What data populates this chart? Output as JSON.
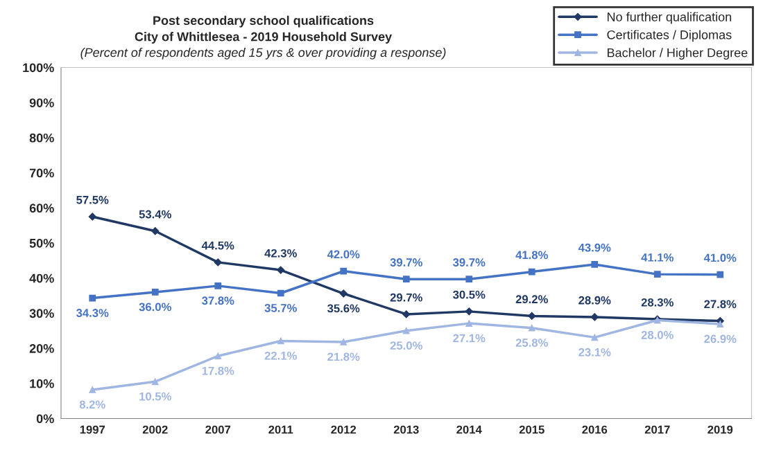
{
  "chart_data": {
    "type": "line",
    "title": "Post secondary school qualifications\nCity of Whittlesea - 2019 Household Survey",
    "subtitle": "(Percent of respondents aged 15 yrs & over providing a response)",
    "categories": [
      "1997",
      "2002",
      "2007",
      "2011",
      "2012",
      "2013",
      "2014",
      "2015",
      "2016",
      "2017",
      "2019"
    ],
    "series": [
      {
        "name": "No further qualification",
        "color": "#203864",
        "marker": "diamond",
        "values": [
          57.5,
          53.4,
          44.5,
          42.3,
          35.6,
          29.7,
          30.5,
          29.2,
          28.9,
          28.3,
          27.8
        ],
        "value_labels": [
          "57.5%",
          "53.4%",
          "44.5%",
          "42.3%",
          "35.6%",
          "29.7%",
          "30.5%",
          "29.2%",
          "28.9%",
          "28.3%",
          "27.8%"
        ]
      },
      {
        "name": "Certificates / Diplomas",
        "color": "#4472c4",
        "marker": "square",
        "values": [
          34.3,
          36.0,
          37.8,
          35.7,
          42.0,
          39.7,
          39.7,
          41.8,
          43.9,
          41.1,
          41.0
        ],
        "value_labels": [
          "34.3%",
          "36.0%",
          "37.8%",
          "35.7%",
          "42.0%",
          "39.7%",
          "39.7%",
          "41.8%",
          "43.9%",
          "41.1%",
          "41.0%"
        ]
      },
      {
        "name": "Bachelor / Higher Degree",
        "color": "#a0b6e2",
        "marker": "triangle",
        "values": [
          8.2,
          10.5,
          17.8,
          22.1,
          21.8,
          25.0,
          27.1,
          25.8,
          23.1,
          28.0,
          26.9
        ],
        "value_labels": [
          "8.2%",
          "10.5%",
          "17.8%",
          "22.1%",
          "21.8%",
          "25.0%",
          "27.1%",
          "25.8%",
          "23.1%",
          "28.0%",
          "26.9%"
        ]
      }
    ],
    "ylim": [
      0,
      100
    ],
    "yticks": [
      {
        "value": 0,
        "label": "0%"
      },
      {
        "value": 10,
        "label": "10%"
      },
      {
        "value": 20,
        "label": "20%"
      },
      {
        "value": 30,
        "label": "30%"
      },
      {
        "value": 40,
        "label": "40%"
      },
      {
        "value": 50,
        "label": "50%"
      },
      {
        "value": 60,
        "label": "60%"
      },
      {
        "value": 70,
        "label": "70%"
      },
      {
        "value": 80,
        "label": "80%"
      },
      {
        "value": 90,
        "label": "90%"
      },
      {
        "value": 100,
        "label": "100%"
      }
    ],
    "grid": false,
    "legend": "top right",
    "line_style": "solid"
  }
}
